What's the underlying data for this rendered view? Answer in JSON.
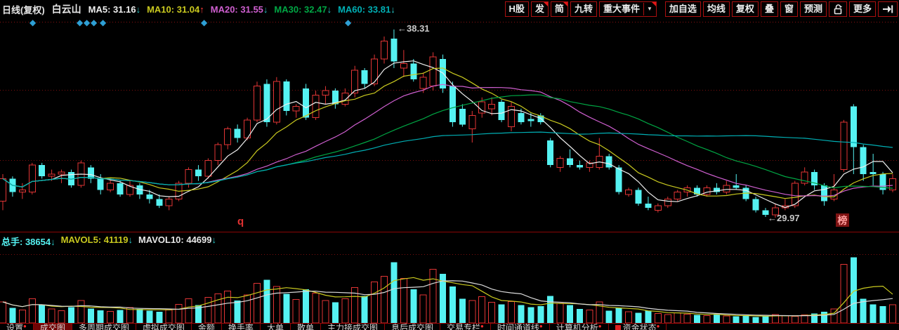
{
  "header": {
    "period": "日线(复权)",
    "stock": "白云山",
    "ma_labels": [
      {
        "label": "MA5: 31.16",
        "color": "#efefef",
        "arrow": "down"
      },
      {
        "label": "MA10: 31.04",
        "color": "#c9c91f",
        "arrow": "up"
      },
      {
        "label": "MA20: 31.55",
        "color": "#cf5fd0",
        "arrow": "down"
      },
      {
        "label": "MA30: 32.47",
        "color": "#00a644",
        "arrow": "down"
      },
      {
        "label": "MA60: 33.81",
        "color": "#00afb4",
        "arrow": "down"
      }
    ],
    "arrow_up_char": "↑",
    "arrow_down_char": "↓",
    "arrow_up_color": "#ff3a3a",
    "arrow_down_color": "#27c5c5",
    "buttons": [
      {
        "label": "H股"
      },
      {
        "label": "发",
        "corner": true
      },
      {
        "label": "简",
        "corner": true
      },
      {
        "label": "九转"
      },
      {
        "label": "重大事件",
        "corner": true,
        "dropdown": "▼"
      },
      {
        "label": "加自选",
        "gap_before": true
      },
      {
        "label": "均线"
      },
      {
        "label": "复权"
      },
      {
        "label": "叠"
      },
      {
        "label": "窗"
      },
      {
        "label": "预测"
      },
      {
        "label": "",
        "icon": "unlock-icon"
      },
      {
        "label": "更多"
      },
      {
        "label": "",
        "icon": "jump-to-latest-icon"
      }
    ]
  },
  "markers": {
    "diamond_char": "◆",
    "diamond_color": "#2e9fd4",
    "diamond_x": [
      48,
      115,
      125,
      135,
      148,
      292,
      497
    ],
    "q_marker": "q",
    "rank_badge": "榜"
  },
  "annotations": {
    "high_label": "←38.31",
    "low_label": "←29.97"
  },
  "volume_header": [
    {
      "label": "总手: 38654",
      "color": "#55f2f2",
      "arrow": "down"
    },
    {
      "label": "MAVOL5: 41119",
      "color": "#c9c91f",
      "arrow": "down"
    },
    {
      "label": "MAVOL10: 44699",
      "color": "#e8e8e8",
      "arrow": "down"
    }
  ],
  "tabs": [
    {
      "label": "设置",
      "dot": true
    },
    {
      "label": "成交图",
      "selected": true
    },
    {
      "label": "多周期成交图"
    },
    {
      "label": "虚拟成交图"
    },
    {
      "label": "金额"
    },
    {
      "label": "换手率"
    },
    {
      "label": "大单"
    },
    {
      "label": "散单"
    },
    {
      "label": "主力接成交图"
    },
    {
      "label": "息后成交图"
    },
    {
      "label": "交易专栏",
      "dot": true
    },
    {
      "label": "时间通道线",
      "dot": true
    },
    {
      "label": "计算机分析",
      "dot": true
    },
    {
      "label": "资金状态",
      "dot": true,
      "square": true
    }
  ],
  "chart_data": {
    "type": "candlestick+volume",
    "title": "白云山 日线(复权)",
    "legend": [
      "MA5",
      "MA10",
      "MA20",
      "MA30",
      "MA60",
      "总手",
      "MAVOL5",
      "MAVOL10"
    ],
    "high_annotation": 38.31,
    "low_annotation": 29.97,
    "last_volume": 38654,
    "price_gridlines": [
      35.63,
      32.52
    ],
    "visible_price_range": [
      29.4,
      38.7
    ],
    "ma_periods": [
      5,
      10,
      20,
      30,
      60
    ],
    "ma_colors": [
      "#efefef",
      "#c9c91f",
      "#cf5fd0",
      "#00a644",
      "#00afb4"
    ],
    "mavol_periods": [
      5,
      10
    ],
    "mavol_colors": [
      "#c9c91f",
      "#dadada"
    ],
    "up_color": "#e23535",
    "down_color": "#55f2f2",
    "candles": [
      [
        30.7,
        31.9,
        30.3,
        31.7
      ],
      [
        31.7,
        31.8,
        30.9,
        31.1
      ],
      [
        31.1,
        31.5,
        30.8,
        31.2
      ],
      [
        31.1,
        32.4,
        31.0,
        32.3
      ],
      [
        32.3,
        32.4,
        31.7,
        31.8
      ],
      [
        31.8,
        32.1,
        31.6,
        31.9
      ],
      [
        31.9,
        32.1,
        31.5,
        32.0
      ],
      [
        32.0,
        32.1,
        31.3,
        31.4
      ],
      [
        31.4,
        32.5,
        31.3,
        32.4
      ],
      [
        32.2,
        32.3,
        31.5,
        31.7
      ],
      [
        31.7,
        31.9,
        31.0,
        31.2
      ],
      [
        31.2,
        31.7,
        31.1,
        31.5
      ],
      [
        31.5,
        31.6,
        30.9,
        31.0
      ],
      [
        31.0,
        31.6,
        30.9,
        31.4
      ],
      [
        31.4,
        31.5,
        30.8,
        31.0
      ],
      [
        31.0,
        31.2,
        30.6,
        30.8
      ],
      [
        30.8,
        31.0,
        30.4,
        30.5
      ],
      [
        30.5,
        30.9,
        30.3,
        30.8
      ],
      [
        30.8,
        31.6,
        30.7,
        31.5
      ],
      [
        31.5,
        32.2,
        31.3,
        32.1
      ],
      [
        32.1,
        32.3,
        31.6,
        31.8
      ],
      [
        31.8,
        32.6,
        31.7,
        32.5
      ],
      [
        32.5,
        33.3,
        32.3,
        33.2
      ],
      [
        33.2,
        34.0,
        33.0,
        33.9
      ],
      [
        33.9,
        34.1,
        33.3,
        33.5
      ],
      [
        33.5,
        34.4,
        33.4,
        34.3
      ],
      [
        34.3,
        36.0,
        34.2,
        35.8
      ],
      [
        35.9,
        36.1,
        34.0,
        34.2
      ],
      [
        34.2,
        36.2,
        34.1,
        36.0
      ],
      [
        36.0,
        36.1,
        34.5,
        34.7
      ],
      [
        34.7,
        35.0,
        34.4,
        34.9
      ],
      [
        35.7,
        35.9,
        34.3,
        34.4
      ],
      [
        34.4,
        35.6,
        34.3,
        35.4
      ],
      [
        35.4,
        35.8,
        35.0,
        35.6
      ],
      [
        35.6,
        35.7,
        34.8,
        35.0
      ],
      [
        35.0,
        35.7,
        34.9,
        35.5
      ],
      [
        35.5,
        36.7,
        35.3,
        36.5
      ],
      [
        36.5,
        36.6,
        35.7,
        35.9
      ],
      [
        35.9,
        37.2,
        35.8,
        37.0
      ],
      [
        37.0,
        38.0,
        36.8,
        37.8
      ],
      [
        37.9,
        38.31,
        36.6,
        36.9
      ],
      [
        36.6,
        37.4,
        36.2,
        36.8
      ],
      [
        36.8,
        37.0,
        36.0,
        36.1
      ],
      [
        35.7,
        36.4,
        35.5,
        36.2
      ],
      [
        35.8,
        37.3,
        35.6,
        37.1
      ],
      [
        37.0,
        37.2,
        35.5,
        35.7
      ],
      [
        35.8,
        36.0,
        34.0,
        34.2
      ],
      [
        34.8,
        35.0,
        34.0,
        34.1
      ],
      [
        33.9,
        34.7,
        33.3,
        34.5
      ],
      [
        34.6,
        35.3,
        34.4,
        35.1
      ],
      [
        34.8,
        35.3,
        34.5,
        35.0
      ],
      [
        35.1,
        35.2,
        34.2,
        34.3
      ],
      [
        34.0,
        35.1,
        33.8,
        34.9
      ],
      [
        34.6,
        34.8,
        34.1,
        34.2
      ],
      [
        34.35,
        34.6,
        34.0,
        34.25
      ],
      [
        34.5,
        34.6,
        34.1,
        34.2
      ],
      [
        33.4,
        33.5,
        32.2,
        32.3
      ],
      [
        32.2,
        32.7,
        32.0,
        32.6
      ],
      [
        32.6,
        33.0,
        32.2,
        32.3
      ],
      [
        32.3,
        32.5,
        32.1,
        32.2
      ],
      [
        32.2,
        32.5,
        32.0,
        32.4
      ],
      [
        32.2,
        33.5,
        32.1,
        32.7
      ],
      [
        32.7,
        32.8,
        32.1,
        32.2
      ],
      [
        32.2,
        32.3,
        31.0,
        31.1
      ],
      [
        31.0,
        31.3,
        30.9,
        31.2
      ],
      [
        31.2,
        31.3,
        30.5,
        30.6
      ],
      [
        30.6,
        30.9,
        30.3,
        30.4
      ],
      [
        30.3,
        30.6,
        30.2,
        30.5
      ],
      [
        30.5,
        30.9,
        30.4,
        30.8
      ],
      [
        30.8,
        31.2,
        30.7,
        31.1
      ],
      [
        31.1,
        31.4,
        30.9,
        31.3
      ],
      [
        31.3,
        31.4,
        30.9,
        31.0
      ],
      [
        31.0,
        31.4,
        30.9,
        31.3
      ],
      [
        31.3,
        31.5,
        31.0,
        31.1
      ],
      [
        31.1,
        31.6,
        31.0,
        31.4
      ],
      [
        31.4,
        31.9,
        31.2,
        31.3
      ],
      [
        31.3,
        31.4,
        30.7,
        30.8
      ],
      [
        30.8,
        30.9,
        30.2,
        30.3
      ],
      [
        30.3,
        30.4,
        30.0,
        30.1
      ],
      [
        30.1,
        30.6,
        29.97,
        30.4
      ],
      [
        30.4,
        30.8,
        30.3,
        30.5
      ],
      [
        30.5,
        31.6,
        30.4,
        31.5
      ],
      [
        31.5,
        32.2,
        31.4,
        32.0
      ],
      [
        32.0,
        32.1,
        31.2,
        31.4
      ],
      [
        31.4,
        31.5,
        30.5,
        30.7
      ],
      [
        30.8,
        31.9,
        30.7,
        31.2
      ],
      [
        32.1,
        34.3,
        32.0,
        34.2
      ],
      [
        34.9,
        35.0,
        31.9,
        33.1
      ],
      [
        33.1,
        33.2,
        31.6,
        31.9
      ],
      [
        32.0,
        32.8,
        31.4,
        31.9
      ],
      [
        31.9,
        32.0,
        31.0,
        31.2
      ],
      [
        31.2,
        31.9,
        31.1,
        31.7
      ]
    ],
    "volumes": [
      45000,
      32000,
      28000,
      52000,
      38000,
      30000,
      26000,
      34000,
      48000,
      31000,
      27000,
      25000,
      28000,
      33000,
      30000,
      26000,
      24000,
      28000,
      40000,
      52000,
      38000,
      55000,
      62000,
      68000,
      48000,
      60000,
      85000,
      92000,
      78000,
      62000,
      50000,
      72000,
      64000,
      48000,
      44000,
      52000,
      76000,
      58000,
      88000,
      100000,
      130000,
      95000,
      72000,
      60000,
      115000,
      105000,
      78000,
      52000,
      48000,
      56000,
      44000,
      40000,
      46000,
      38000,
      34000,
      36000,
      58000,
      42000,
      38000,
      30000,
      28000,
      45000,
      26000,
      32000,
      24000,
      22000,
      26000,
      20000,
      18000,
      22000,
      19000,
      17000,
      16000,
      18000,
      15000,
      14000,
      16000,
      13000,
      15000,
      18000,
      16000,
      14000,
      17000,
      20000,
      24000,
      30000,
      125000,
      140000,
      52000,
      40000,
      36000,
      38654
    ]
  }
}
